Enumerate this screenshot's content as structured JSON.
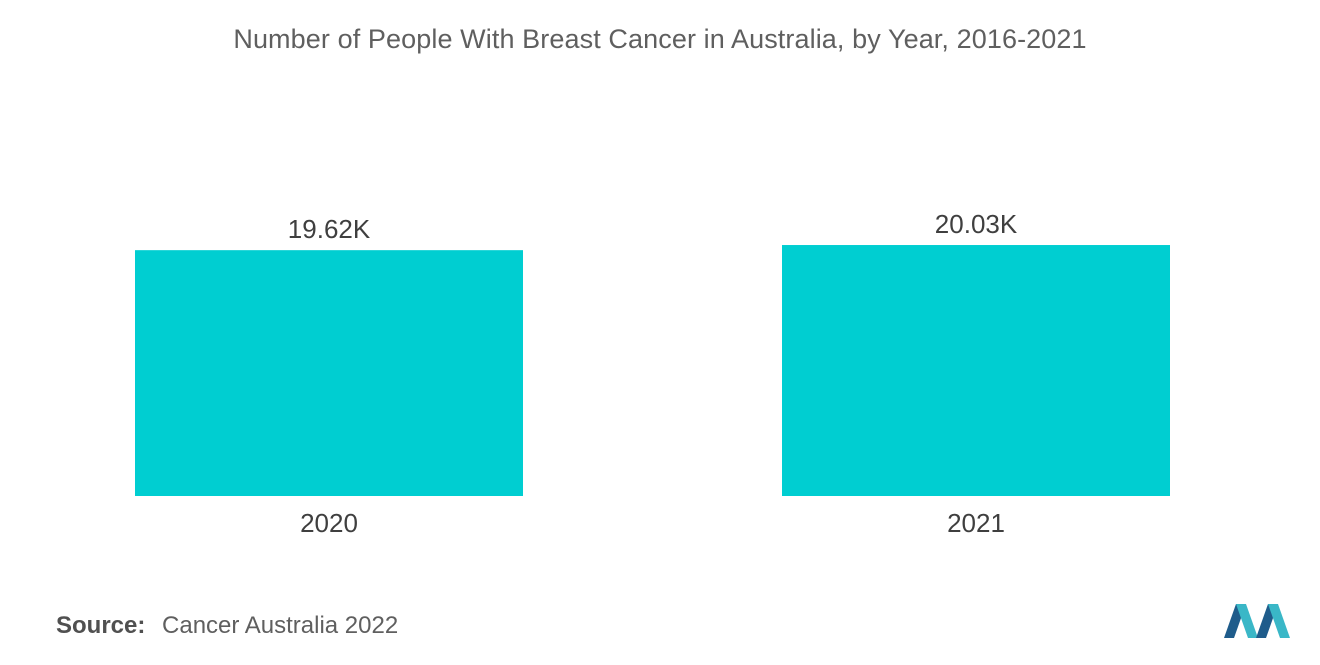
{
  "chart_data": {
    "type": "bar",
    "title": "Number of People With Breast Cancer in Australia, by Year, 2016-2021",
    "categories": [
      "2020",
      "2021"
    ],
    "values": [
      19.62,
      20.03
    ],
    "data_labels": [
      "19.62K",
      "20.03K"
    ],
    "unit": "K",
    "xlabel": "",
    "ylabel": "",
    "ylim": [
      0,
      22
    ],
    "grid": false,
    "bar_color": "#00CED1"
  },
  "source": {
    "label": "Source:",
    "text": "Cancer Australia 2022"
  },
  "logo": {
    "icon": "mordor-intelligence-logo",
    "colors": [
      "#1f5c8b",
      "#3ab7c7"
    ]
  }
}
